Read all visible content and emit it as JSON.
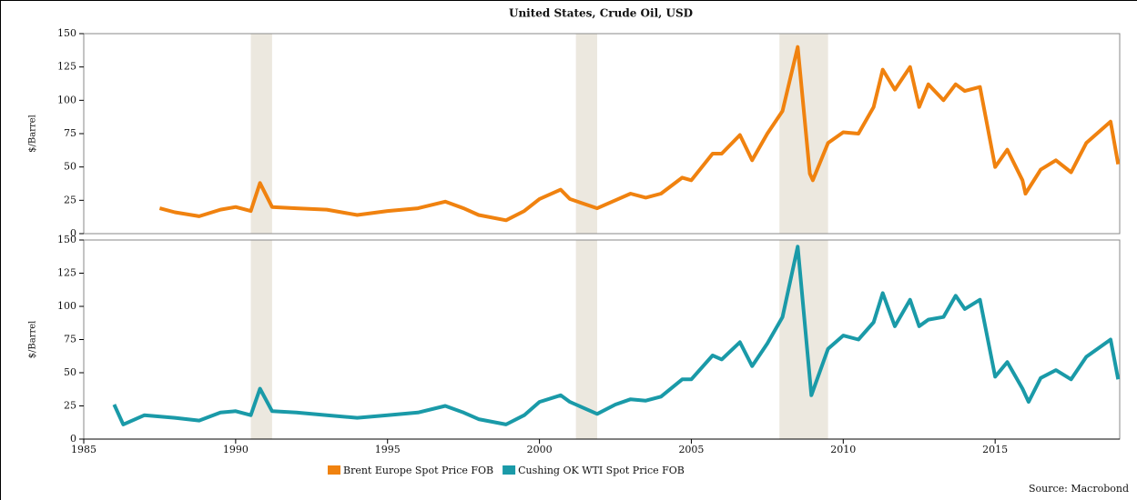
{
  "chart_data": [
    {
      "type": "line",
      "title": "United States, Crude Oil, USD",
      "ylabel": "$/Barrel",
      "xlim": [
        1985,
        2019.1
      ],
      "ylim": [
        0,
        150
      ],
      "yticks": [
        0,
        25,
        50,
        75,
        100,
        125,
        150
      ],
      "recessions": [
        [
          1990.5,
          1991.2
        ],
        [
          2001.2,
          2001.9
        ],
        [
          2007.9,
          2009.5
        ]
      ],
      "recession_color": "#ece8df",
      "series": [
        {
          "name": "Brent Europe Spot Price FOB",
          "color": "#f0820f",
          "x": [
            1987.5,
            1988,
            1988.8,
            1989.5,
            1990,
            1990.5,
            1990.8,
            1991.2,
            1992,
            1993,
            1994,
            1995,
            1996,
            1996.9,
            1997.5,
            1998,
            1998.9,
            1999.5,
            2000,
            2000.7,
            2001,
            2001.9,
            2002.5,
            2003,
            2003.5,
            2004,
            2004.7,
            2005,
            2005.7,
            2006,
            2006.6,
            2007,
            2007.5,
            2008,
            2008.5,
            2008.9,
            2009,
            2009.5,
            2010,
            2010.5,
            2011,
            2011.3,
            2011.7,
            2012.2,
            2012.5,
            2012.8,
            2013.3,
            2013.7,
            2014,
            2014.5,
            2015,
            2015.4,
            2015.9,
            2016,
            2016.5,
            2017,
            2017.5,
            2018,
            2018.8,
            2019.05
          ],
          "values": [
            19,
            16,
            13,
            18,
            20,
            17,
            38,
            20,
            19,
            18,
            14,
            17,
            19,
            24,
            19,
            14,
            10,
            17,
            26,
            33,
            26,
            19,
            25,
            30,
            27,
            30,
            42,
            40,
            60,
            60,
            74,
            55,
            75,
            92,
            140,
            45,
            40,
            68,
            76,
            75,
            95,
            123,
            108,
            125,
            95,
            112,
            100,
            112,
            107,
            110,
            50,
            63,
            40,
            30,
            48,
            55,
            46,
            68,
            84,
            52
          ]
        }
      ]
    },
    {
      "type": "line",
      "ylabel": "$/Barrel",
      "xlim": [
        1985,
        2019.1
      ],
      "ylim": [
        0,
        150
      ],
      "yticks": [
        0,
        25,
        50,
        75,
        100,
        125,
        150
      ],
      "xticks": [
        1985,
        1990,
        1995,
        2000,
        2005,
        2010,
        2015
      ],
      "recessions": [
        [
          1990.5,
          1991.2
        ],
        [
          2001.2,
          2001.9
        ],
        [
          2007.9,
          2009.5
        ]
      ],
      "recession_color": "#ece8df",
      "series": [
        {
          "name": "Cushing OK WTI Spot Price FOB",
          "color": "#1a9aa8",
          "x": [
            1986,
            1986.3,
            1987,
            1988,
            1988.8,
            1989.5,
            1990,
            1990.5,
            1990.8,
            1991.2,
            1992,
            1993,
            1994,
            1995,
            1996,
            1996.9,
            1997.5,
            1998,
            1998.9,
            1999.5,
            2000,
            2000.7,
            2001,
            2001.9,
            2002.5,
            2003,
            2003.5,
            2004,
            2004.7,
            2005,
            2005.7,
            2006,
            2006.6,
            2007,
            2007.5,
            2008,
            2008.5,
            2008.95,
            2009.5,
            2010,
            2010.5,
            2011,
            2011.3,
            2011.7,
            2012.2,
            2012.5,
            2012.8,
            2013.3,
            2013.7,
            2014,
            2014.5,
            2015,
            2015.4,
            2015.9,
            2016.1,
            2016.5,
            2017,
            2017.5,
            2018,
            2018.8,
            2019.05
          ],
          "values": [
            26,
            11,
            18,
            16,
            14,
            20,
            21,
            18,
            38,
            21,
            20,
            18,
            16,
            18,
            20,
            25,
            20,
            15,
            11,
            18,
            28,
            33,
            28,
            19,
            26,
            30,
            29,
            32,
            45,
            45,
            63,
            60,
            73,
            55,
            72,
            92,
            145,
            33,
            68,
            78,
            75,
            88,
            110,
            85,
            105,
            85,
            90,
            92,
            108,
            98,
            105,
            47,
            58,
            38,
            28,
            46,
            52,
            45,
            62,
            75,
            45
          ]
        }
      ]
    }
  ],
  "source": "Source: Macrobond"
}
